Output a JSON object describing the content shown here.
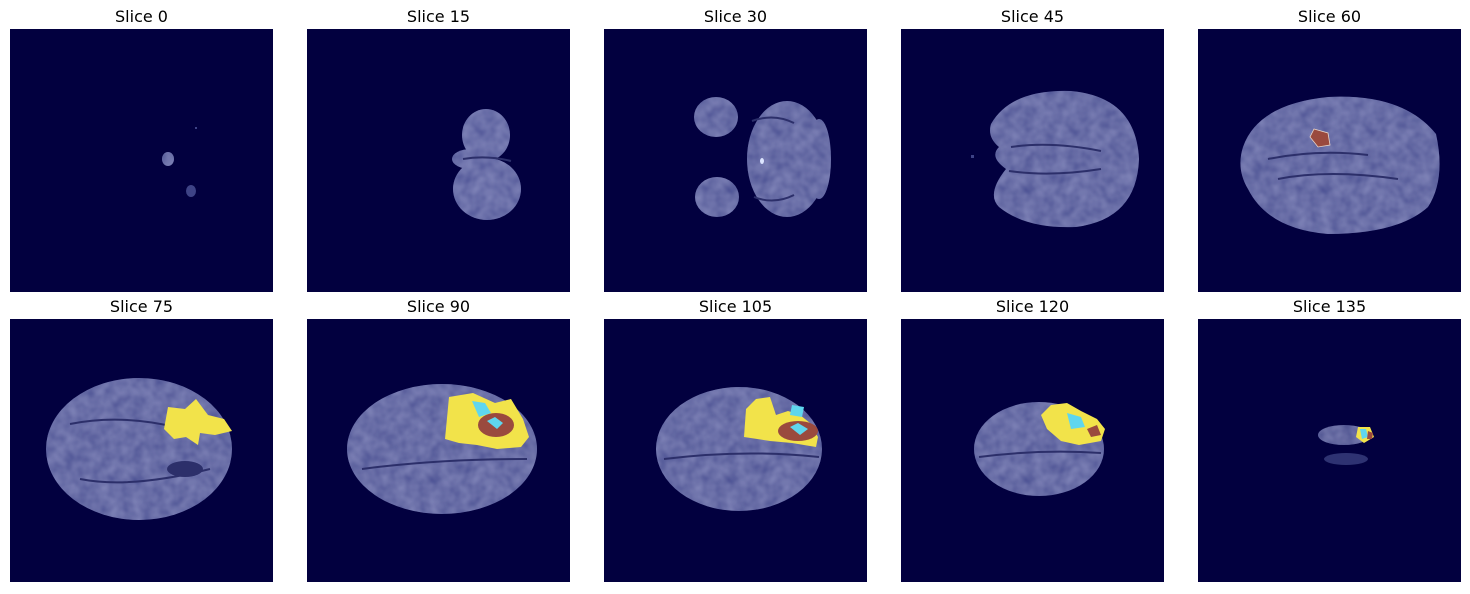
{
  "figure": {
    "panels": [
      {
        "title": "Slice 0"
      },
      {
        "title": "Slice 15"
      },
      {
        "title": "Slice 30"
      },
      {
        "title": "Slice 45"
      },
      {
        "title": "Slice 60"
      },
      {
        "title": "Slice 75"
      },
      {
        "title": "Slice 90"
      },
      {
        "title": "Slice 105"
      },
      {
        "title": "Slice 120"
      },
      {
        "title": "Slice 135"
      }
    ]
  },
  "colors": {
    "background": "#02003f",
    "brain_tissue": "#4a4f93",
    "brain_tissue_light": "#6f74b5",
    "edema": "#f2e34a",
    "enhancing_tumor": "#5fd6ee",
    "necrotic_core": "#9a4a3e"
  }
}
